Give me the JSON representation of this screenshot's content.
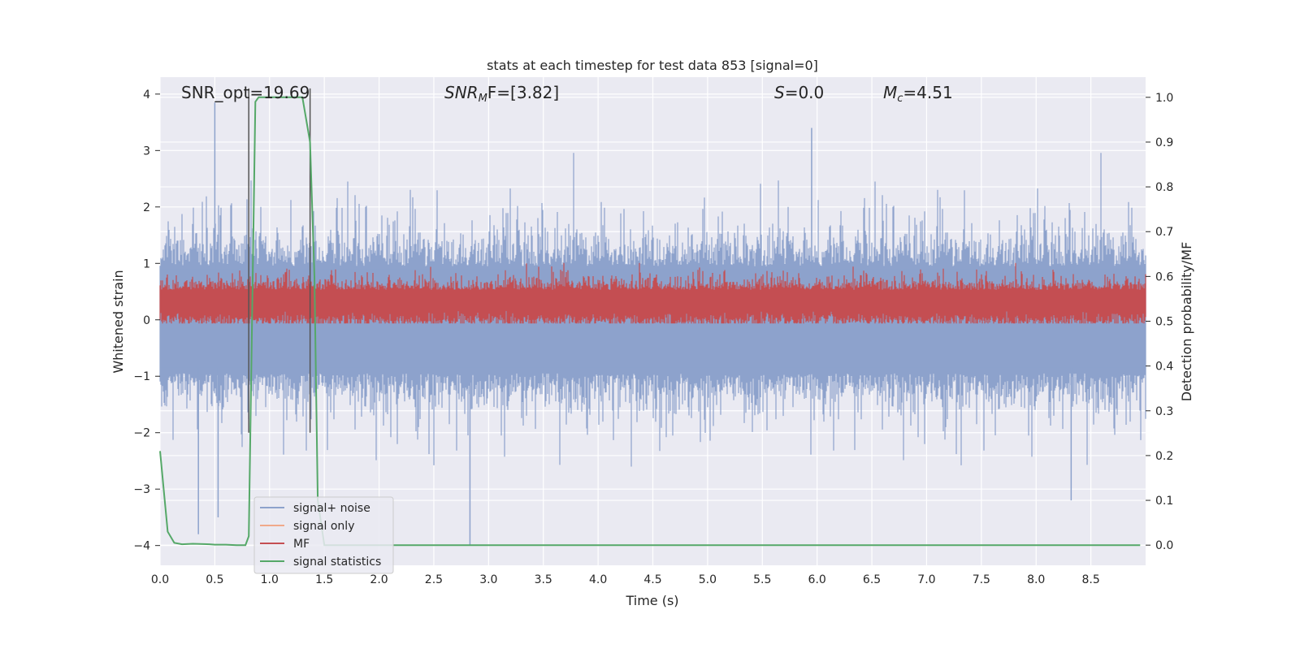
{
  "chart_data": {
    "type": "line",
    "title": "stats at each timestep for test data 853 [signal=0]",
    "xlabel": "Time (s)",
    "ylabel": "Whitened strain",
    "y2label": "Detection probability/MF",
    "xlim": [
      0.0,
      9.0
    ],
    "ylim": [
      -4.35,
      4.3
    ],
    "y2lim": [
      -0.045,
      1.045
    ],
    "xticks": [
      "0.0",
      "0.5",
      "1.0",
      "1.5",
      "2.0",
      "2.5",
      "3.0",
      "3.5",
      "4.0",
      "4.5",
      "5.0",
      "5.5",
      "6.0",
      "6.5",
      "7.0",
      "7.5",
      "8.0",
      "8.5"
    ],
    "yticks": [
      "4",
      "3",
      "2",
      "1",
      "0",
      "−1",
      "−2",
      "−3",
      "−4"
    ],
    "y2ticks": [
      "1.0",
      "0.9",
      "0.8",
      "0.7",
      "0.6",
      "0.5",
      "0.4",
      "0.3",
      "0.2",
      "0.1",
      "0.0"
    ],
    "grid": true,
    "legend_position": "lower-left",
    "annotations": {
      "snr_opt": "SNR_opt=19.69",
      "snr_mf_main": "SNR",
      "snr_mf_sub": "M",
      "snr_mf_rest": "F=[3.82]",
      "s_var": "S",
      "s_rest": "=0.0",
      "mc_var": "M",
      "mc_sub": "c",
      "mc_rest": "=4.51"
    },
    "vlines_x": [
      0.81,
      1.37
    ],
    "series": [
      {
        "name": "signal+ noise",
        "color": "#8da2cc",
        "description_range": [
          -4.0,
          3.9
        ],
        "peaks": [
          [
            0.5,
            3.85
          ],
          [
            0.35,
            -3.8
          ],
          [
            0.53,
            -3.5
          ],
          [
            2.83,
            -4.0
          ],
          [
            5.95,
            3.4
          ],
          [
            7.5,
            1.0
          ],
          [
            8.32,
            -3.2
          ]
        ]
      },
      {
        "name": "signal only",
        "color": "#f0a98a",
        "values": []
      },
      {
        "name": "MF",
        "color": "#c44e52",
        "range": [
          0.0,
          1.0
        ]
      },
      {
        "name": "signal statistics",
        "color": "#55a868",
        "x": [
          0.0,
          0.07,
          0.13,
          0.2,
          0.3,
          0.45,
          0.5,
          0.6,
          0.7,
          0.78,
          0.81,
          0.87,
          0.9,
          1.0,
          1.1,
          1.2,
          1.3,
          1.37,
          1.41,
          1.44,
          1.5,
          2.0,
          3.0,
          4.0,
          5.0,
          6.0,
          7.0,
          8.0,
          8.95
        ],
        "values": [
          0.21,
          0.03,
          0.005,
          0.002,
          0.003,
          0.002,
          0.001,
          0.001,
          0.0,
          0.0,
          0.02,
          0.99,
          1.0,
          1.0,
          1.0,
          1.0,
          1.0,
          0.9,
          0.6,
          0.1,
          0.0,
          0.0,
          0.0,
          0.0,
          0.0,
          0.0,
          0.0,
          0.0,
          0.0
        ]
      }
    ]
  }
}
